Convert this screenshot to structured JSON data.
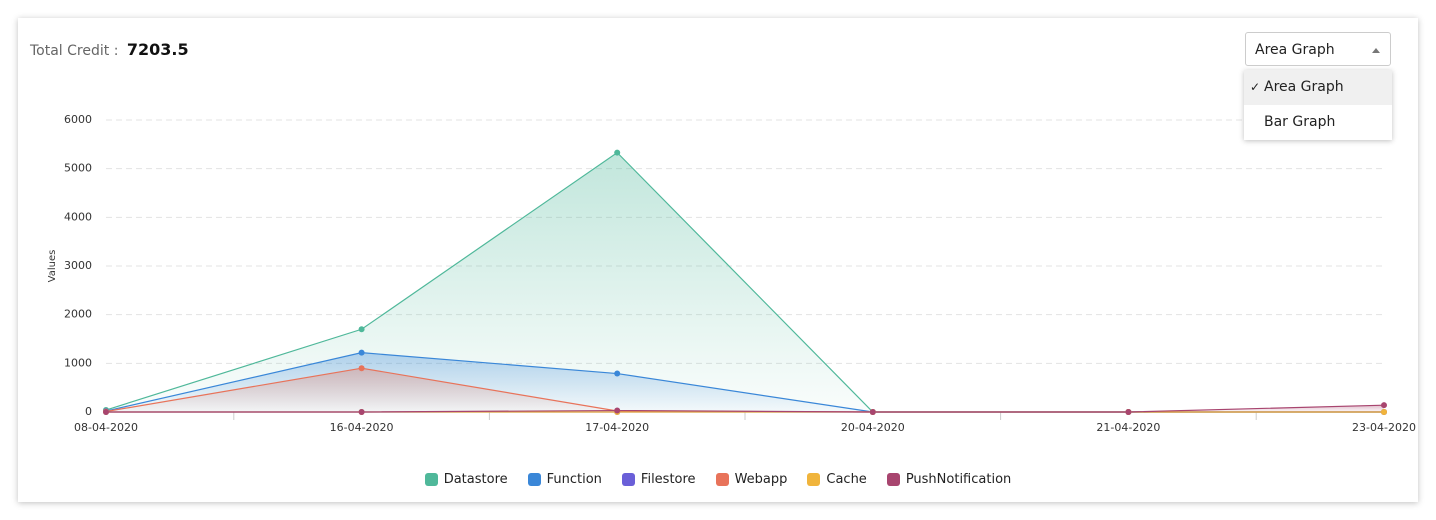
{
  "header": {
    "label": "Total Credit :",
    "value": 7203.5
  },
  "dropdown": {
    "selected": "Area Graph",
    "options": [
      "Area Graph",
      "Bar Graph"
    ]
  },
  "chart_data": {
    "type": "area",
    "y_label": "Values",
    "categories": [
      "08-04-2020",
      "16-04-2020",
      "17-04-2020",
      "20-04-2020",
      "21-04-2020",
      "23-04-2020"
    ],
    "series": [
      {
        "name": "Datastore",
        "color": "#4fb89a",
        "values": [
          40,
          1700,
          5330,
          0,
          0,
          0
        ]
      },
      {
        "name": "Function",
        "color": "#3a87d8",
        "values": [
          20,
          1220,
          790,
          0,
          0,
          0
        ]
      },
      {
        "name": "Filestore",
        "color": "#6a5fd8",
        "values": [
          0,
          0,
          0,
          0,
          0,
          0
        ]
      },
      {
        "name": "Webapp",
        "color": "#e8735a",
        "values": [
          10,
          900,
          20,
          0,
          0,
          0
        ]
      },
      {
        "name": "Cache",
        "color": "#f0b43c",
        "values": [
          0,
          0,
          0,
          0,
          0,
          0
        ]
      },
      {
        "name": "PushNotification",
        "color": "#a8456f",
        "values": [
          0,
          0,
          30,
          0,
          0,
          140
        ]
      }
    ],
    "ylim": [
      0,
      6000
    ],
    "yticks": [
      0,
      1000,
      2000,
      3000,
      4000,
      5000,
      6000
    ],
    "grid": true
  }
}
